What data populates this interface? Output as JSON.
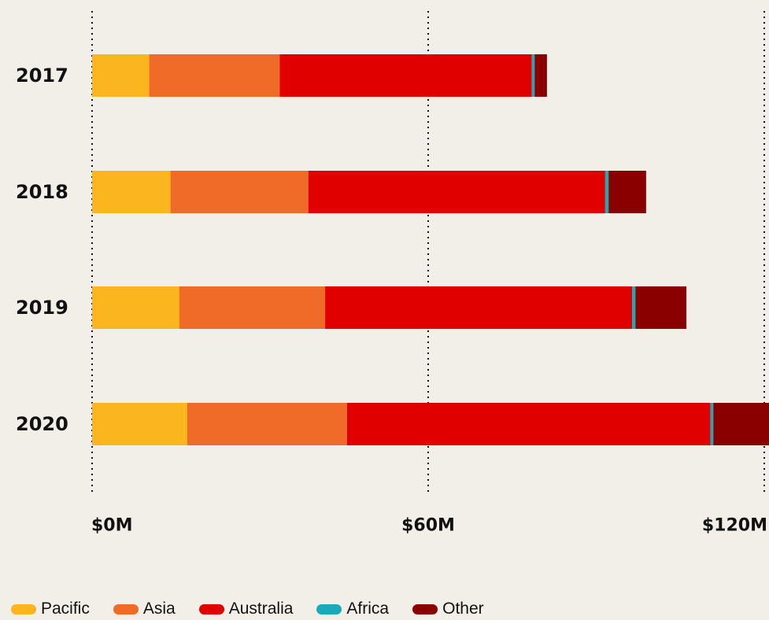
{
  "chart_data": {
    "type": "bar",
    "orientation": "horizontal",
    "stacked": true,
    "categories": [
      "2017",
      "2018",
      "2019",
      "2020"
    ],
    "series": [
      {
        "name": "Pacific",
        "color": "#fbb51f",
        "values": [
          10.2,
          14.0,
          15.6,
          17.0
        ]
      },
      {
        "name": "Asia",
        "color": "#f06a28",
        "values": [
          23.3,
          24.6,
          26.0,
          28.5
        ]
      },
      {
        "name": "Australia",
        "color": "#e00000",
        "values": [
          45.0,
          53.0,
          54.8,
          64.9
        ]
      },
      {
        "name": "Africa",
        "color": "#1aabb8",
        "values": [
          0.5,
          0.6,
          0.6,
          0.5
        ]
      },
      {
        "name": "Other",
        "color": "#8a0000",
        "values": [
          2.2,
          6.7,
          9.1,
          10.8
        ]
      }
    ],
    "x_ticks": [
      "$0M",
      "$60M",
      "$120M"
    ],
    "x_tick_values": [
      0,
      60,
      120
    ],
    "xlim": [
      0,
      120
    ],
    "grid": "dotted vertical",
    "legend_position": "bottom"
  }
}
